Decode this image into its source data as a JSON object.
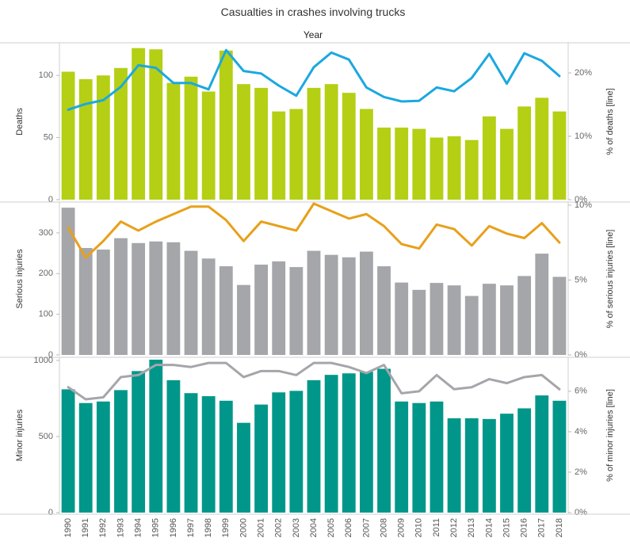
{
  "chart_data": {
    "type": "bar",
    "title": "Casualties in crashes involving trucks",
    "x_axis_header": "Year",
    "categories": [
      "1990",
      "1991",
      "1992",
      "1993",
      "1994",
      "1995",
      "1996",
      "1997",
      "1998",
      "1999",
      "2000",
      "2001",
      "2002",
      "2003",
      "2004",
      "2005",
      "2006",
      "2007",
      "2008",
      "2009",
      "2010",
      "2011",
      "2012",
      "2013",
      "2014",
      "2015",
      "2016",
      "2017",
      "2018"
    ],
    "panels": [
      {
        "name": "deaths",
        "ylabel": "Deaths",
        "y2label": "% of deaths [line]",
        "ylim": [
          0,
          125
        ],
        "yticks": [
          0,
          50,
          100
        ],
        "y2lim": [
          0,
          0.245
        ],
        "y2ticks": [
          0,
          0.1,
          0.2
        ],
        "y2ticklabels": [
          "0%",
          "10%",
          "20%"
        ],
        "bar_color": "#b5cf14",
        "line_color": "#1ba8e0",
        "bars": [
          103,
          97,
          100,
          106,
          122,
          121,
          94,
          99,
          87,
          120,
          93,
          90,
          71,
          73,
          90,
          93,
          86,
          73,
          58,
          58,
          57,
          50,
          51,
          48,
          67,
          57,
          75,
          82,
          71
        ],
        "line": [
          0.142,
          0.151,
          0.157,
          0.178,
          0.212,
          0.208,
          0.184,
          0.184,
          0.174,
          0.236,
          0.203,
          0.199,
          0.18,
          0.164,
          0.209,
          0.232,
          0.221,
          0.177,
          0.162,
          0.155,
          0.156,
          0.177,
          0.171,
          0.192,
          0.23,
          0.183,
          0.231,
          0.219,
          0.195
        ]
      },
      {
        "name": "serious-injuries",
        "ylabel": "Serious injuries",
        "y2label": "% of serious injuries [line]",
        "ylim": [
          0,
          372
        ],
        "yticks": [
          0,
          100,
          200,
          300
        ],
        "y2lim": [
          0,
          0.101
        ],
        "y2ticks": [
          0,
          0.05,
          0.1
        ],
        "y2ticklabels": [
          "0%",
          "5%",
          "10%"
        ],
        "bar_color": "#a5a6aa",
        "line_color": "#e8a01a",
        "bars": [
          362,
          263,
          259,
          287,
          275,
          279,
          277,
          256,
          237,
          218,
          172,
          222,
          230,
          216,
          256,
          246,
          240,
          254,
          218,
          178,
          160,
          177,
          171,
          145,
          175,
          171,
          194,
          249,
          192
        ],
        "line": [
          0.085,
          0.065,
          0.076,
          0.089,
          0.083,
          0.089,
          0.094,
          0.099,
          0.099,
          0.09,
          0.076,
          0.089,
          0.086,
          0.083,
          0.101,
          0.096,
          0.091,
          0.094,
          0.086,
          0.074,
          0.071,
          0.087,
          0.084,
          0.073,
          0.086,
          0.081,
          0.078,
          0.088,
          0.075
        ]
      },
      {
        "name": "minor-injuries",
        "ylabel": "Minor injuries",
        "y2label": "% of minor injuries [line]",
        "ylim": [
          0,
          1010
        ],
        "yticks": [
          0,
          500,
          1000
        ],
        "y2lim": [
          0,
          0.076
        ],
        "y2ticks": [
          0,
          0.02,
          0.04,
          0.06
        ],
        "y2ticklabels": [
          "0%",
          "2%",
          "4%",
          "6%"
        ],
        "bar_color": "#00978a",
        "line_color": "#a5a6aa",
        "bars": [
          810,
          720,
          730,
          805,
          930,
          1005,
          870,
          785,
          765,
          735,
          590,
          710,
          790,
          800,
          870,
          905,
          915,
          925,
          945,
          730,
          720,
          730,
          620,
          620,
          615,
          650,
          685,
          770,
          735
        ],
        "line": [
          0.062,
          0.056,
          0.057,
          0.067,
          0.068,
          0.073,
          0.073,
          0.072,
          0.074,
          0.074,
          0.067,
          0.07,
          0.07,
          0.068,
          0.074,
          0.074,
          0.072,
          0.069,
          0.073,
          0.059,
          0.06,
          0.068,
          0.061,
          0.062,
          0.066,
          0.064,
          0.067,
          0.068,
          0.061
        ]
      }
    ],
    "grid": false,
    "legend": "none"
  }
}
